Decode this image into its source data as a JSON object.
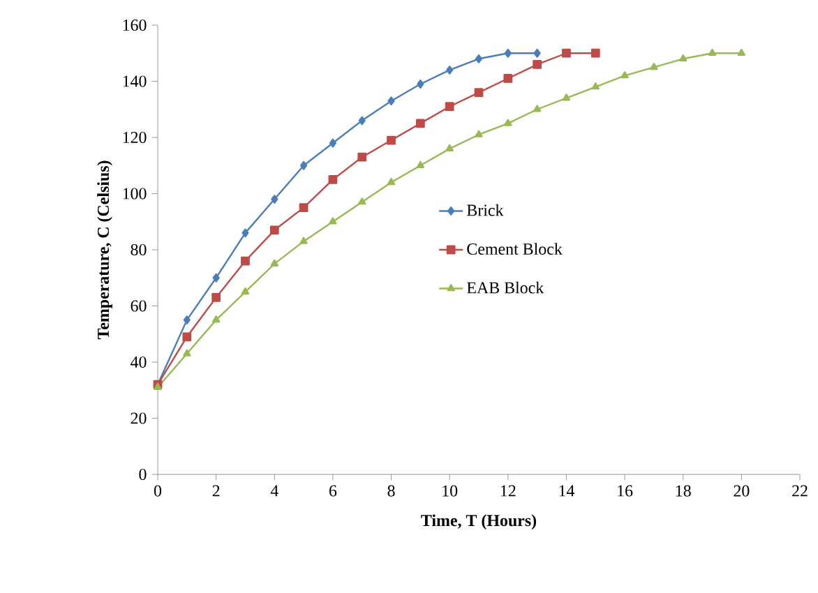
{
  "chart_data": {
    "type": "line",
    "xlabel": "Time,  T (Hours)",
    "ylabel": "Temperature, C (Celsius)",
    "xlim": [
      0,
      22
    ],
    "xticks": [
      0,
      2,
      4,
      6,
      8,
      10,
      12,
      14,
      16,
      18,
      20,
      22
    ],
    "ylim": [
      0,
      160
    ],
    "yticks": [
      0,
      20,
      40,
      60,
      80,
      100,
      120,
      140,
      160
    ],
    "grid": false,
    "legend": "right",
    "line_style": "solid",
    "series": [
      {
        "name": "Brick",
        "color": "#4a7ebb",
        "marker": "diamond",
        "x": [
          0,
          1,
          2,
          3,
          4,
          5,
          6,
          7,
          8,
          9,
          10,
          11,
          12,
          13
        ],
        "values": [
          32,
          55,
          70,
          86,
          98,
          110,
          118,
          126,
          133,
          139,
          144,
          148,
          150,
          150
        ]
      },
      {
        "name": "Cement Block",
        "color": "#be4b48",
        "marker": "square",
        "x": [
          0,
          1,
          2,
          3,
          4,
          5,
          6,
          7,
          8,
          9,
          10,
          11,
          12,
          13,
          14,
          15
        ],
        "values": [
          32,
          49,
          63,
          76,
          87,
          95,
          105,
          113,
          119,
          125,
          131,
          136,
          141,
          146,
          150,
          150
        ]
      },
      {
        "name": "EAB Block",
        "color": "#98b954",
        "marker": "triangle",
        "x": [
          0,
          1,
          2,
          3,
          4,
          5,
          6,
          7,
          8,
          9,
          10,
          11,
          12,
          13,
          14,
          15,
          16,
          17,
          18,
          19,
          20
        ],
        "values": [
          31,
          43,
          55,
          65,
          75,
          83,
          90,
          97,
          104,
          110,
          116,
          121,
          125,
          130,
          134,
          138,
          142,
          145,
          148,
          150,
          150
        ]
      }
    ]
  }
}
